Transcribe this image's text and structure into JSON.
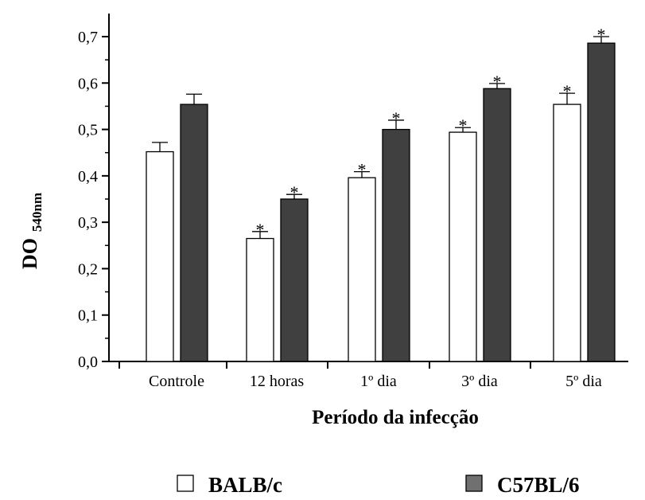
{
  "chart_data": {
    "type": "bar",
    "title": "",
    "xlabel": "Período da infecção",
    "ylabel_main": "DO",
    "ylabel_sub": "540nm",
    "ylim": [
      0,
      0.75
    ],
    "yticks": [
      "0,0",
      "0,1",
      "0,2",
      "0,3",
      "0,4",
      "0,5",
      "0,6",
      "0,7"
    ],
    "ytick_values": [
      0,
      0.1,
      0.2,
      0.3,
      0.4,
      0.5,
      0.6,
      0.7
    ],
    "categories": [
      "Controle",
      "12 horas",
      "1º dia",
      "3º dia",
      "5º dia"
    ],
    "series": [
      {
        "name": "BALB/c",
        "color": "#ffffff",
        "values": [
          0.452,
          0.265,
          0.396,
          0.494,
          0.554
        ],
        "errors": [
          0.02,
          0.015,
          0.013,
          0.01,
          0.024
        ],
        "significant": [
          false,
          true,
          true,
          true,
          true
        ]
      },
      {
        "name": "C57BL/6",
        "color": "#404040",
        "values": [
          0.554,
          0.35,
          0.5,
          0.588,
          0.686
        ],
        "errors": [
          0.022,
          0.01,
          0.02,
          0.011,
          0.014
        ],
        "significant": [
          false,
          true,
          true,
          true,
          true
        ]
      }
    ],
    "significance_marker": "*",
    "grid": false,
    "legend_position": "bottom"
  }
}
